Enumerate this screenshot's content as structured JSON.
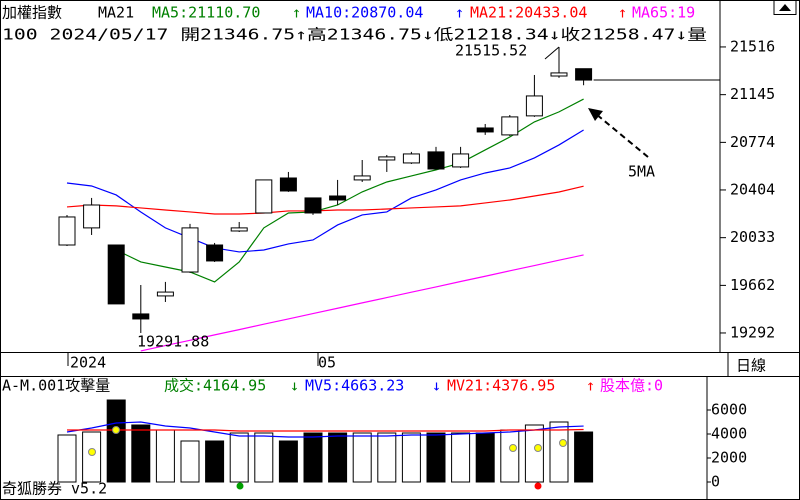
{
  "chart_data": [
    {
      "type": "candlestick",
      "header": [
        {
          "text": "加權指數",
          "color": "#000000"
        },
        {
          "text": "MA21",
          "color": "#000000"
        },
        {
          "text": "MA5:21110.70",
          "color": "#008000"
        },
        {
          "text": "↑",
          "color": "#008000"
        },
        {
          "text": "MA10:20870.04",
          "color": "#0000ff"
        },
        {
          "text": "↑",
          "color": "#0000ff"
        },
        {
          "text": "MA21:20433.04",
          "color": "#ff0000"
        },
        {
          "text": "↑",
          "color": "#ff0000"
        },
        {
          "text": "MA65:19",
          "color": "#ff00ff"
        }
      ],
      "info": "100 2024/05/17 開21346.75↑高21346.75↓低21218.34↓收21258.47↓量",
      "x_labels": [
        "2024",
        "05"
      ],
      "period": "日線",
      "annotations": [
        "21515.52",
        "19291.88",
        "5MA"
      ],
      "open": [
        19976,
        20109,
        19976,
        19440,
        19580,
        19766,
        19976,
        20085,
        20225,
        20497,
        20342,
        20357,
        20482,
        20637,
        20614,
        20700,
        20583,
        20886,
        20832,
        20980,
        21290,
        21346.75
      ],
      "high": [
        20209,
        20342,
        19976,
        19665,
        19689,
        20140,
        19992,
        20155,
        20482,
        20544,
        20342,
        20482,
        20637,
        20676,
        20700,
        20739,
        20739,
        20917,
        20987,
        21298,
        21515.52,
        21346.75
      ],
      "low": [
        19968,
        20054,
        19518,
        19291.88,
        19533,
        19759,
        19844,
        20077,
        20225,
        20389,
        20210,
        20287,
        20466,
        20544,
        20606,
        20560,
        20575,
        20832,
        20824,
        20972,
        21275,
        21218.34
      ],
      "close": [
        20194,
        20287,
        19518,
        19401,
        19610,
        20109,
        19852,
        20109,
        20482,
        20396,
        20225,
        20326,
        20513,
        20661,
        20684,
        20567,
        20684,
        20855,
        20972,
        21135,
        21314,
        21258.47
      ],
      "up_color": "#ffffff",
      "down_color": "#000000",
      "series": [
        {
          "color": "#008000",
          "values": [
            null,
            null,
            19937,
            19844,
            19805,
            19766,
            19689,
            19844,
            20109,
            20225,
            20233,
            20287,
            20389,
            20466,
            20513,
            20560,
            20614,
            20715,
            20816,
            20933,
            21011,
            21110.7
          ]
        },
        {
          "color": "#0000ff",
          "values": [
            20458,
            20435,
            20365,
            20233,
            20109,
            20031,
            19953,
            19922,
            19937,
            19984,
            20015,
            20132,
            20210,
            20233,
            20342,
            20404,
            20482,
            20536,
            20575,
            20653,
            20754,
            20870.04
          ]
        },
        {
          "color": "#ff0000",
          "values": [
            20272,
            20287,
            20280,
            20264,
            20248,
            20233,
            20217,
            20217,
            20225,
            20241,
            20241,
            20248,
            20248,
            20256,
            20264,
            20272,
            20280,
            20303,
            20326,
            20357,
            20388,
            20433.04
          ]
        },
        {
          "color": "#ff00ff",
          "values": [
            null,
            null,
            null,
            19152,
            19194,
            19235,
            19277,
            19318,
            19360,
            19401,
            19443,
            19484,
            19526,
            19567,
            19609,
            19650,
            19692,
            19733,
            19775,
            19816,
            19858,
            19899
          ]
        }
      ],
      "ylim": [
        19144,
        21881
      ],
      "yticks": [
        19292,
        19662,
        20033,
        20404,
        20774,
        21145,
        21516
      ]
    },
    {
      "type": "bar",
      "header": [
        {
          "text": "A-M.001攻擊量",
          "color": "#000000"
        },
        {
          "text": "成交:4164.95",
          "color": "#008000"
        },
        {
          "text": "↓",
          "color": "#008000"
        },
        {
          "text": "MV5:4663.23",
          "color": "#0000ff"
        },
        {
          "text": "↓",
          "color": "#0000ff"
        },
        {
          "text": "MV21:4376.95",
          "color": "#ff0000"
        },
        {
          "text": "↑",
          "color": "#ff0000"
        },
        {
          "text": "股本億:0",
          "color": "#ff00ff"
        }
      ],
      "footer": "奇狐勝券 v5.2",
      "values": [
        3917,
        4167,
        6833,
        4750,
        4333,
        3417,
        3417,
        4083,
        4083,
        3417,
        4083,
        4083,
        4083,
        4083,
        4083,
        4083,
        4083,
        4083,
        4333,
        4750,
        5000,
        4164.95
      ],
      "series": [
        {
          "color": "#0000ff",
          "values": [
            4167,
            4500,
            4917,
            5000,
            4667,
            4500,
            4167,
            3833,
            3833,
            3750,
            3750,
            3833,
            3833,
            3833,
            3917,
            3917,
            4000,
            4083,
            4167,
            4333,
            4583,
            4663.23
          ]
        },
        {
          "color": "#ff0000",
          "values": [
            4333,
            4333,
            4333,
            4333,
            4333,
            4333,
            4333,
            4250,
            4250,
            4250,
            4250,
            4250,
            4250,
            4250,
            4250,
            4250,
            4250,
            4250,
            4333,
            4333,
            4333,
            4376.95
          ]
        }
      ],
      "ylim": [
        -1500,
        8833
      ],
      "yticks": [
        0,
        2000,
        4000,
        6000
      ]
    }
  ]
}
